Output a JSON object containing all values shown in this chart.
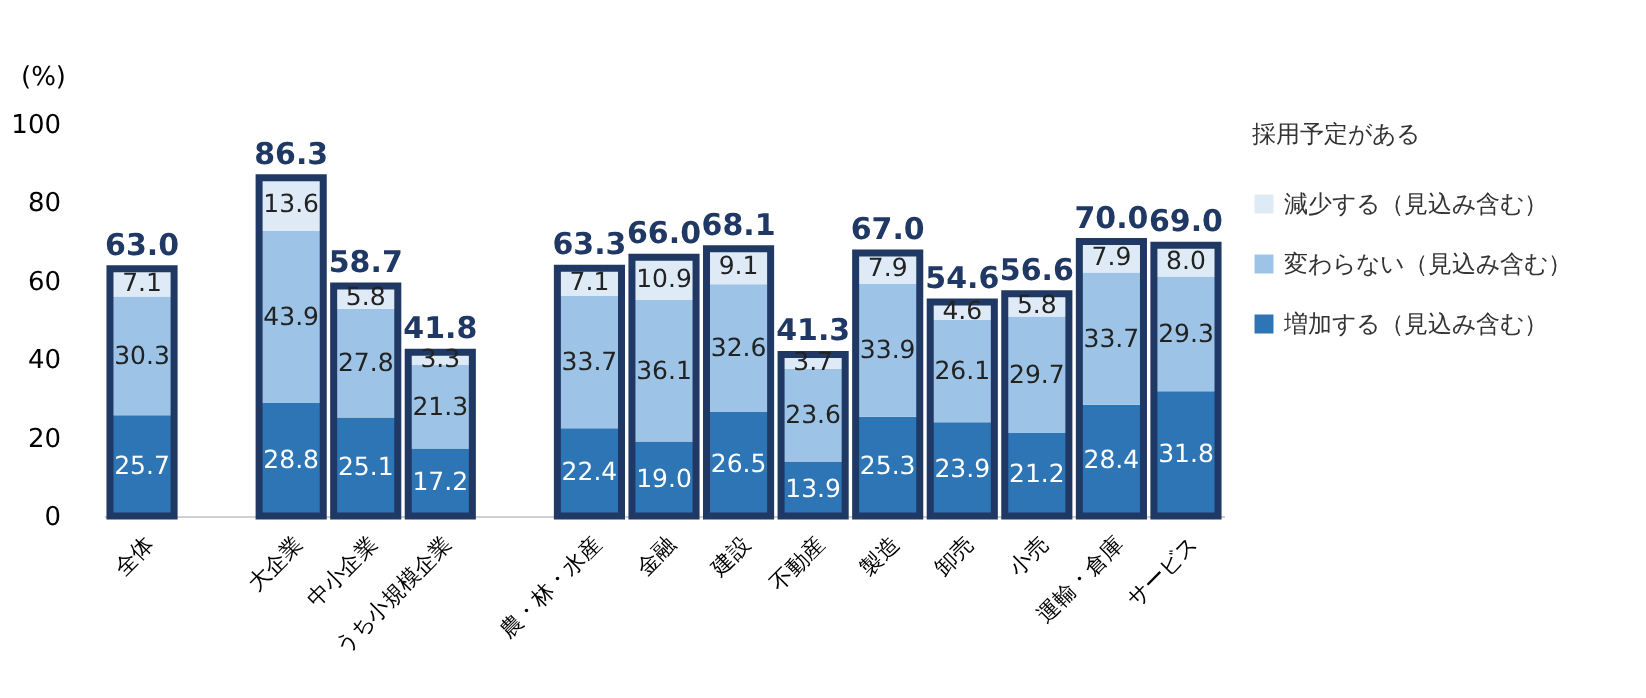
{
  "chart_data": {
    "type": "bar",
    "stacked": true,
    "ylabel": "(%)",
    "ylim": [
      0,
      100
    ],
    "yticks": [
      0,
      20,
      40,
      60,
      80,
      100
    ],
    "grid": false,
    "legend": "right",
    "legend_title": "採用予定がある",
    "categories": [
      "全体",
      null,
      "大企業",
      "中小企業",
      "うち小規模企業",
      null,
      "農・林・水産",
      "金融",
      "建設",
      "不動産",
      "製造",
      "卸売",
      "小売",
      "運輸・倉庫",
      "サービス"
    ],
    "series": [
      {
        "name": "増加する（見込み含む）",
        "color": "#2e75b6",
        "values": [
          25.7,
          null,
          28.8,
          25.1,
          17.2,
          null,
          22.4,
          19.0,
          26.5,
          13.9,
          25.3,
          23.9,
          21.2,
          28.4,
          31.8
        ],
        "value_labels": [
          "25.7",
          null,
          "28.8",
          "25.1",
          "17.2",
          null,
          "22.4",
          "19.0",
          "26.5",
          "13.9",
          "25.3",
          "23.9",
          "21.2",
          "28.4",
          "31.8"
        ]
      },
      {
        "name": "変わらない（見込み含む）",
        "color": "#9dc3e6",
        "values": [
          30.3,
          null,
          43.9,
          27.8,
          21.3,
          null,
          33.7,
          36.1,
          32.6,
          23.6,
          33.9,
          26.1,
          29.7,
          33.7,
          29.3
        ],
        "value_labels": [
          "30.3",
          null,
          "43.9",
          "27.8",
          "21.3",
          null,
          "33.7",
          "36.1",
          "32.6",
          "23.6",
          "33.9",
          "26.1",
          "29.7",
          "33.7",
          "29.3"
        ]
      },
      {
        "name": "減少する（見込み含む）",
        "color": "#deebf7",
        "values": [
          7.1,
          null,
          13.6,
          5.8,
          3.3,
          null,
          7.1,
          10.9,
          9.1,
          3.7,
          7.9,
          4.6,
          5.8,
          7.9,
          8.0
        ],
        "value_labels": [
          "7.1",
          null,
          "13.6",
          "5.8",
          "3.3",
          null,
          "7.1",
          "10.9",
          "9.1",
          "3.7",
          "7.9",
          "4.6",
          "5.8",
          "7.9",
          "8.0"
        ]
      }
    ],
    "totals": [
      "63.0",
      null,
      "86.3",
      "58.7",
      "41.8",
      null,
      "63.3",
      "66.0",
      "68.1",
      "41.3",
      "67.0",
      "54.6",
      "56.6",
      "70.0",
      "69.0"
    ]
  }
}
